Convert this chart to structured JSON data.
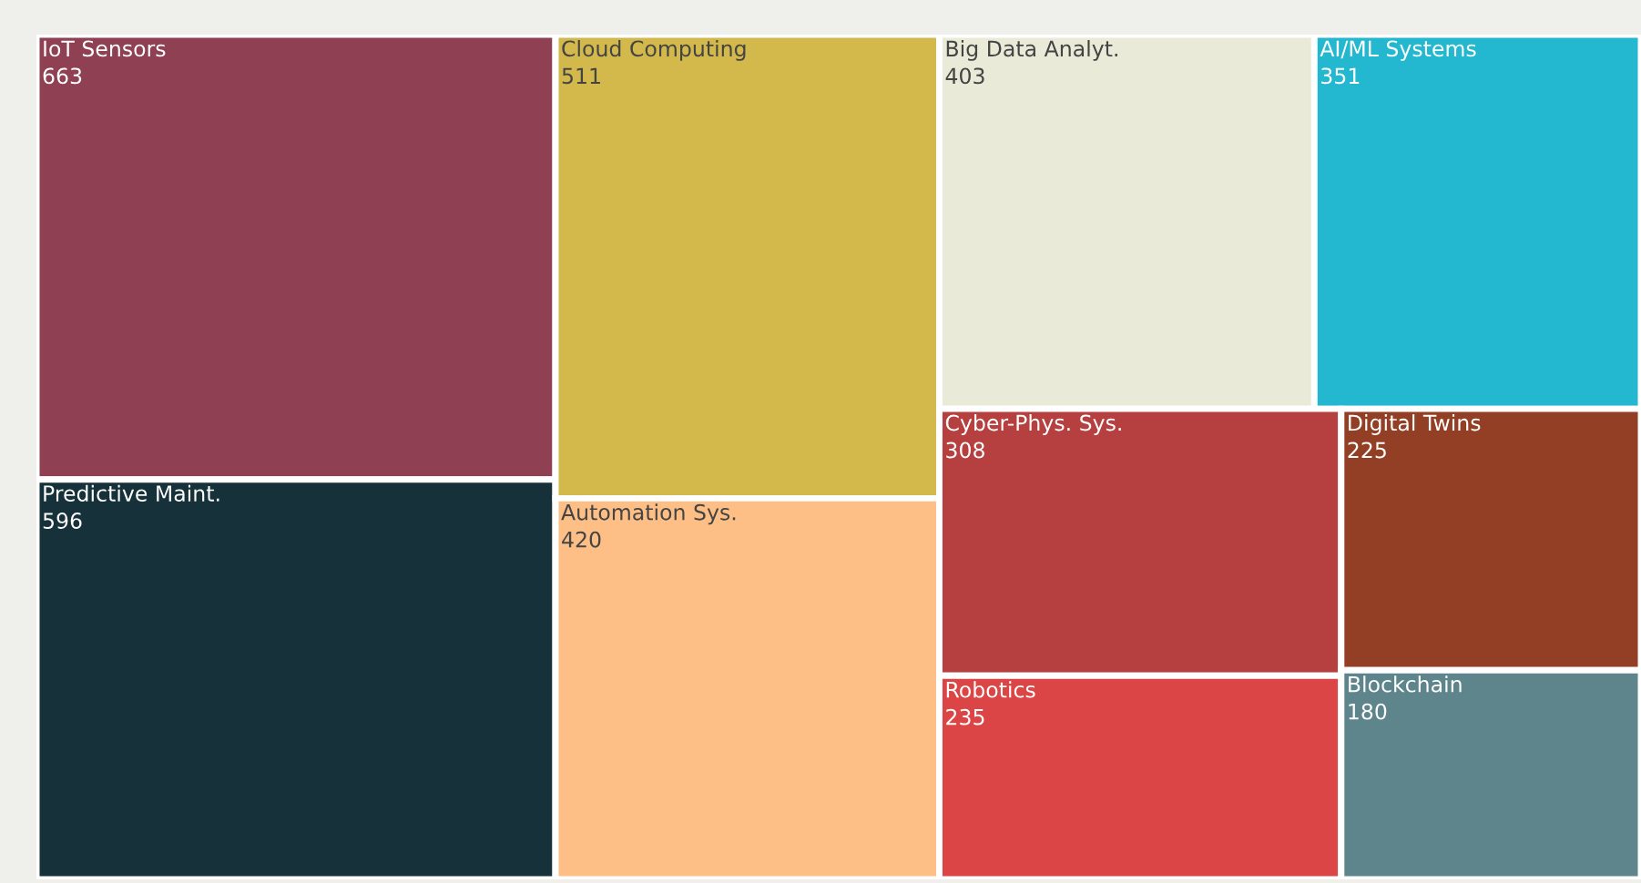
{
  "chart_data": {
    "type": "other",
    "data_labels": true,
    "categories": [
      "IoT Sensors",
      "Predictive Maint.",
      "Cloud Computing",
      "Automation Sys.",
      "Big Data Analyt.",
      "AI/ML Systems",
      "Cyber-Phys. Sys.",
      "Robotics",
      "Digital Twins",
      "Blockchain"
    ],
    "values": [
      663,
      596,
      511,
      420,
      403,
      351,
      308,
      235,
      225,
      180
    ],
    "colors": [
      "#8f4052",
      "#163139",
      "#d3b94c",
      "#fdbf86",
      "#eaead8",
      "#23b8cf",
      "#b5403f",
      "#dc4545",
      "#933f25",
      "#5e858b"
    ]
  }
}
